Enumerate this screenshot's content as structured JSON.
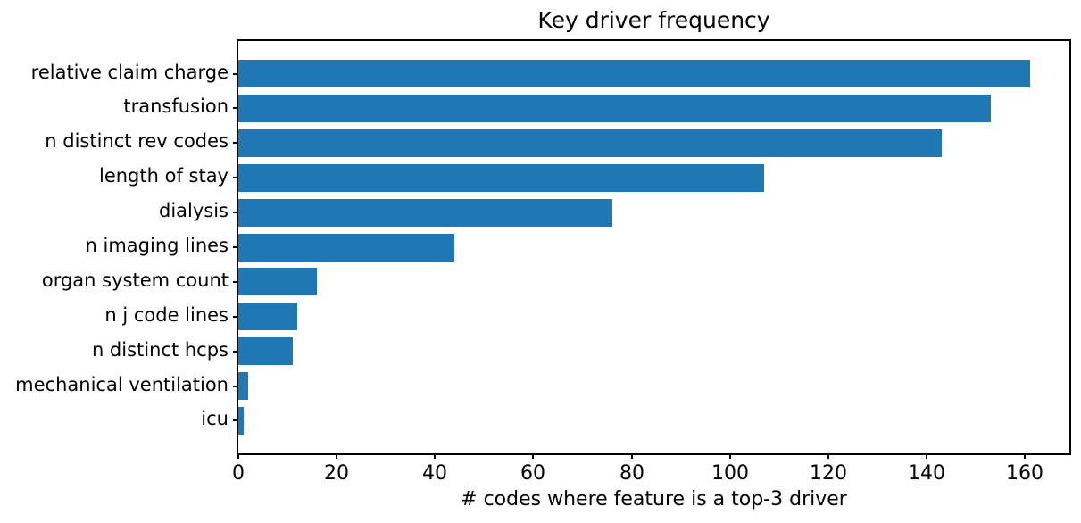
{
  "chart_data": {
    "type": "bar",
    "orientation": "horizontal",
    "title": "Key driver frequency",
    "xlabel": "# codes where feature is a top-3 driver",
    "ylabel": "",
    "categories": [
      "relative claim charge",
      "transfusion",
      "n distinct rev codes",
      "length of stay",
      "dialysis",
      "n imaging lines",
      "organ system count",
      "n j code lines",
      "n distinct hcps",
      "mechanical ventilation",
      "icu"
    ],
    "values": [
      161,
      153,
      143,
      107,
      76,
      44,
      16,
      12,
      11,
      2,
      1
    ],
    "xticks": [
      0,
      20,
      40,
      60,
      80,
      100,
      120,
      140,
      160
    ],
    "xlim": [
      0,
      169.05
    ],
    "bar_color": "#1f77b4",
    "axis_color": "#000000",
    "text_color": "#000000",
    "background": "#ffffff",
    "grid": false,
    "legend": null
  }
}
